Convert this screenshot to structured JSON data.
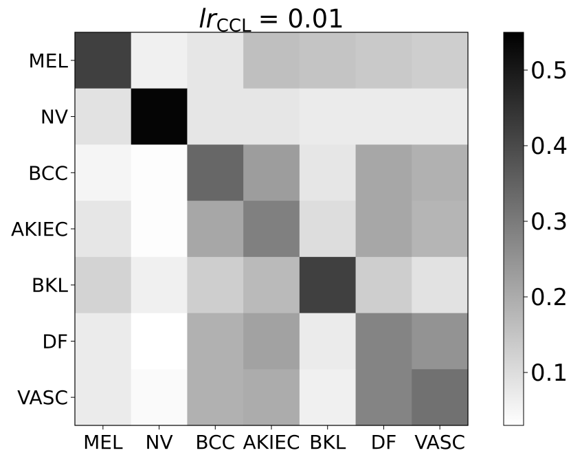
{
  "chart_data": {
    "type": "heatmap",
    "title": "lr_CCL = 0.01",
    "title_parts": {
      "lr": "lr",
      "sub": "CCL",
      "rest": "= 0.01"
    },
    "row_labels": [
      "MEL",
      "NV",
      "BCC",
      "AKIEC",
      "BKL",
      "DF",
      "VASC"
    ],
    "col_labels": [
      "MEL",
      "NV",
      "BCC",
      "AKIEC",
      "BKL",
      "DF",
      "VASC"
    ],
    "values": [
      [
        0.42,
        0.06,
        0.08,
        0.16,
        0.15,
        0.14,
        0.13
      ],
      [
        0.09,
        0.54,
        0.08,
        0.08,
        0.07,
        0.07,
        0.07
      ],
      [
        0.05,
        0.035,
        0.34,
        0.23,
        0.08,
        0.21,
        0.19
      ],
      [
        0.08,
        0.035,
        0.21,
        0.29,
        0.1,
        0.21,
        0.18
      ],
      [
        0.12,
        0.06,
        0.13,
        0.17,
        0.42,
        0.13,
        0.09
      ],
      [
        0.07,
        0.03,
        0.19,
        0.22,
        0.07,
        0.28,
        0.25
      ],
      [
        0.07,
        0.04,
        0.19,
        0.2,
        0.06,
        0.28,
        0.32
      ]
    ],
    "colorbar": {
      "min": 0.03,
      "max": 0.55,
      "ticks": [
        0.1,
        0.2,
        0.3,
        0.4,
        0.5
      ],
      "tick_labels": [
        "0.1",
        "0.2",
        "0.3",
        "0.4",
        "0.5"
      ]
    },
    "colormap": "Greys",
    "grid": false
  }
}
